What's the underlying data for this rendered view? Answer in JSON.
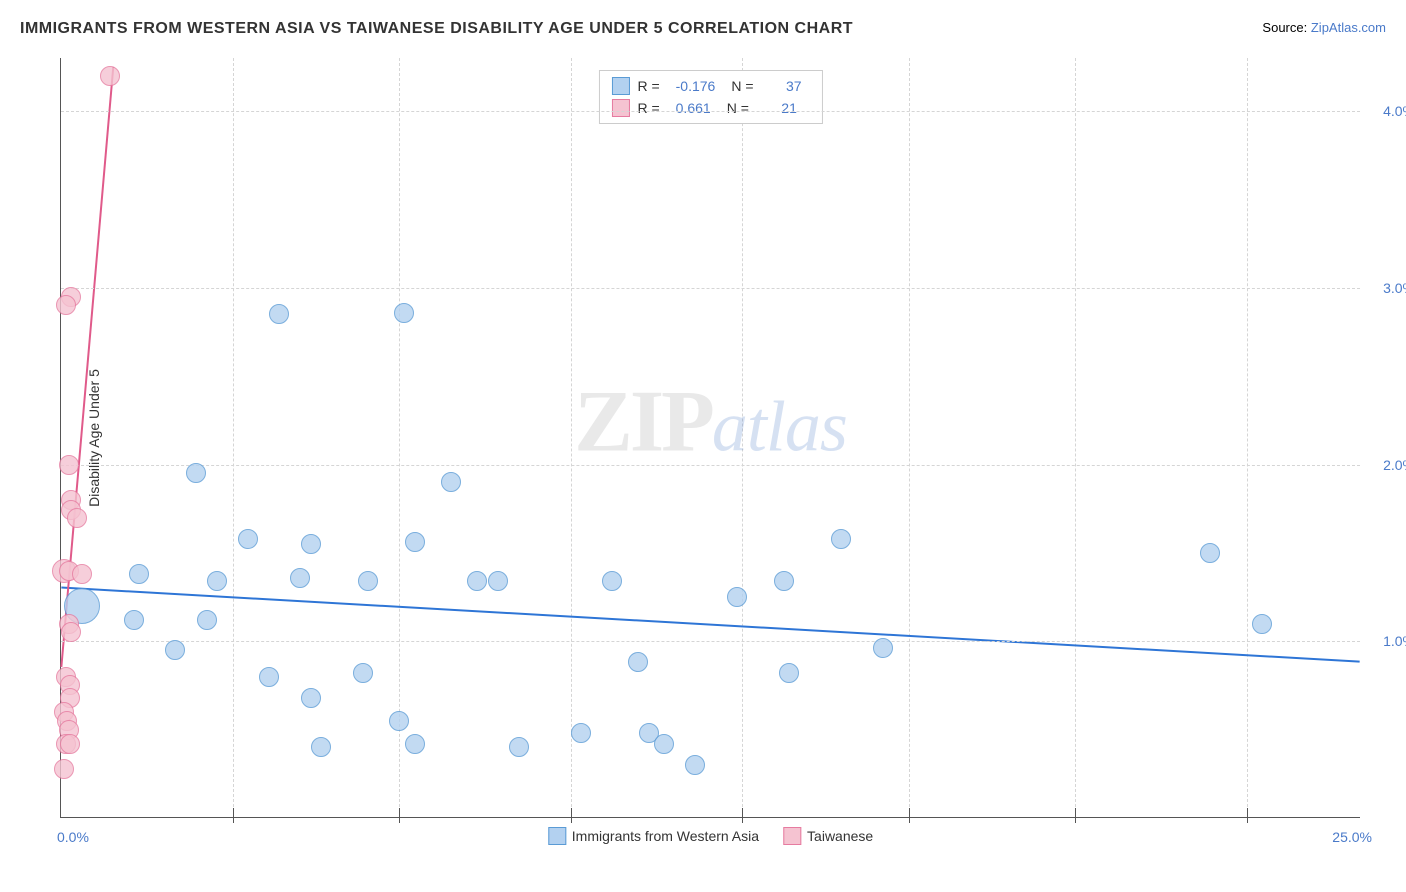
{
  "title": "IMMIGRANTS FROM WESTERN ASIA VS TAIWANESE DISABILITY AGE UNDER 5 CORRELATION CHART",
  "source": {
    "label": "Source:",
    "link": "ZipAtlas.com"
  },
  "y_axis_title": "Disability Age Under 5",
  "watermark": {
    "zip": "ZIP",
    "atlas": "atlas"
  },
  "chart": {
    "type": "scatter",
    "xlim": [
      0,
      25
    ],
    "ylim": [
      0,
      4.3
    ],
    "x_ticks_major": [
      0,
      25
    ],
    "x_ticks_minor": [
      3.3,
      6.5,
      9.8,
      13.1,
      16.3,
      19.5,
      22.8
    ],
    "y_ticks": [
      1.0,
      2.0,
      3.0,
      4.0
    ],
    "x_tick_labels": {
      "min": "0.0%",
      "max": "25.0%"
    },
    "y_tick_labels": [
      "1.0%",
      "2.0%",
      "3.0%",
      "4.0%"
    ],
    "background_color": "#ffffff",
    "grid_color": "#d5d5d5",
    "series": [
      {
        "name": "Immigrants from Western Asia",
        "color_fill": "#b3d1f0",
        "color_stroke": "#5a9bd5",
        "opacity": 0.8,
        "stats": {
          "r": "-0.176",
          "n": "37"
        },
        "trend": {
          "x1": 0,
          "y1": 1.3,
          "x2": 25,
          "y2": 0.88,
          "stroke": "#2e75d6",
          "width": 2
        },
        "points": [
          {
            "x": 4.2,
            "y": 2.85,
            "r": 10
          },
          {
            "x": 6.6,
            "y": 2.86,
            "r": 10
          },
          {
            "x": 2.6,
            "y": 1.95,
            "r": 10
          },
          {
            "x": 7.5,
            "y": 1.9,
            "r": 10
          },
          {
            "x": 3.6,
            "y": 1.58,
            "r": 10
          },
          {
            "x": 4.8,
            "y": 1.55,
            "r": 10
          },
          {
            "x": 6.8,
            "y": 1.56,
            "r": 10
          },
          {
            "x": 15.0,
            "y": 1.58,
            "r": 10
          },
          {
            "x": 22.1,
            "y": 1.5,
            "r": 10
          },
          {
            "x": 1.5,
            "y": 1.38,
            "r": 10
          },
          {
            "x": 3.0,
            "y": 1.34,
            "r": 10
          },
          {
            "x": 4.6,
            "y": 1.36,
            "r": 10
          },
          {
            "x": 5.9,
            "y": 1.34,
            "r": 10
          },
          {
            "x": 8.0,
            "y": 1.34,
            "r": 10
          },
          {
            "x": 8.4,
            "y": 1.34,
            "r": 10
          },
          {
            "x": 10.6,
            "y": 1.34,
            "r": 10
          },
          {
            "x": 13.0,
            "y": 1.25,
            "r": 10
          },
          {
            "x": 13.9,
            "y": 1.34,
            "r": 10
          },
          {
            "x": 0.4,
            "y": 1.2,
            "r": 18
          },
          {
            "x": 1.4,
            "y": 1.12,
            "r": 10
          },
          {
            "x": 2.8,
            "y": 1.12,
            "r": 10
          },
          {
            "x": 23.1,
            "y": 1.1,
            "r": 10
          },
          {
            "x": 2.2,
            "y": 0.95,
            "r": 10
          },
          {
            "x": 15.8,
            "y": 0.96,
            "r": 10
          },
          {
            "x": 4.0,
            "y": 0.8,
            "r": 10
          },
          {
            "x": 5.8,
            "y": 0.82,
            "r": 10
          },
          {
            "x": 11.1,
            "y": 0.88,
            "r": 10
          },
          {
            "x": 14.0,
            "y": 0.82,
            "r": 10
          },
          {
            "x": 4.8,
            "y": 0.68,
            "r": 10
          },
          {
            "x": 6.5,
            "y": 0.55,
            "r": 10
          },
          {
            "x": 10.0,
            "y": 0.48,
            "r": 10
          },
          {
            "x": 11.3,
            "y": 0.48,
            "r": 10
          },
          {
            "x": 12.2,
            "y": 0.3,
            "r": 10
          },
          {
            "x": 5.0,
            "y": 0.4,
            "r": 10
          },
          {
            "x": 6.8,
            "y": 0.42,
            "r": 10
          },
          {
            "x": 8.8,
            "y": 0.4,
            "r": 10
          },
          {
            "x": 11.6,
            "y": 0.42,
            "r": 10
          }
        ]
      },
      {
        "name": "Taiwanese",
        "color_fill": "#f5c3d1",
        "color_stroke": "#e67ba0",
        "opacity": 0.8,
        "stats": {
          "r": "0.661",
          "n": "21"
        },
        "trend": {
          "x1": 0.0,
          "y1": 0.85,
          "x2": 1.0,
          "y2": 4.25,
          "stroke": "#e05a8a",
          "width": 2
        },
        "points": [
          {
            "x": 0.95,
            "y": 4.2,
            "r": 10
          },
          {
            "x": 0.2,
            "y": 2.95,
            "r": 10
          },
          {
            "x": 0.1,
            "y": 2.9,
            "r": 10
          },
          {
            "x": 0.15,
            "y": 2.0,
            "r": 10
          },
          {
            "x": 0.2,
            "y": 1.8,
            "r": 10
          },
          {
            "x": 0.2,
            "y": 1.74,
            "r": 10
          },
          {
            "x": 0.3,
            "y": 1.7,
            "r": 10
          },
          {
            "x": 0.05,
            "y": 1.4,
            "r": 12
          },
          {
            "x": 0.15,
            "y": 1.4,
            "r": 10
          },
          {
            "x": 0.4,
            "y": 1.38,
            "r": 10
          },
          {
            "x": 0.15,
            "y": 1.1,
            "r": 10
          },
          {
            "x": 0.2,
            "y": 1.05,
            "r": 10
          },
          {
            "x": 0.1,
            "y": 0.8,
            "r": 10
          },
          {
            "x": 0.18,
            "y": 0.75,
            "r": 10
          },
          {
            "x": 0.18,
            "y": 0.68,
            "r": 10
          },
          {
            "x": 0.05,
            "y": 0.6,
            "r": 10
          },
          {
            "x": 0.12,
            "y": 0.55,
            "r": 10
          },
          {
            "x": 0.15,
            "y": 0.5,
            "r": 10
          },
          {
            "x": 0.1,
            "y": 0.42,
            "r": 10
          },
          {
            "x": 0.18,
            "y": 0.42,
            "r": 10
          },
          {
            "x": 0.05,
            "y": 0.28,
            "r": 10
          }
        ]
      }
    ]
  },
  "stats_labels": {
    "r": "R =",
    "n": "N ="
  },
  "legend_labels": {
    "s1": "Immigrants from Western Asia",
    "s2": "Taiwanese"
  }
}
